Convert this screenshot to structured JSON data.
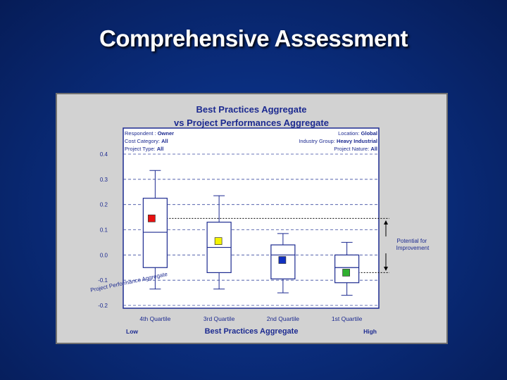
{
  "slide": {
    "title": "Comprehensive Assessment"
  },
  "chart_info": {
    "respondent_label": "Respondent :",
    "respondent_value": "Owner",
    "cost_category_label": "Cost Category:",
    "cost_category_value": "All",
    "project_type_label": "Project Type:",
    "project_type_value": "All",
    "location_label": "Location:",
    "location_value": "Global",
    "industry_group_label": "Industry Group:",
    "industry_group_value": "Heavy Industrial",
    "project_nature_label": "Project Nature:",
    "project_nature_value": "All"
  },
  "chart_data": {
    "type": "box",
    "title_line1": "Best Practices Aggregate",
    "title_line2": "vs Project Performances Aggregate",
    "xlabel": "Best Practices Aggregate",
    "ylabel": "Project Performance Aggregate",
    "x_low_label": "Low",
    "x_high_label": "High",
    "ylim": [
      -0.2,
      0.4
    ],
    "yticks": [
      "0.4",
      "0.3",
      "0.2",
      "0.1",
      "0.0",
      "-0.1",
      "-0.2"
    ],
    "ytick_values": [
      0.4,
      0.3,
      0.2,
      0.1,
      0.0,
      -0.1,
      -0.2
    ],
    "grid": true,
    "categories": [
      "4th Quartile",
      "3rd Quartile",
      "2nd Quartile",
      "1st Quartile"
    ],
    "boxes": [
      {
        "category": "4th Quartile",
        "whisker_high": 0.335,
        "q3": 0.225,
        "median": 0.09,
        "q1": -0.05,
        "whisker_low": -0.135,
        "mean": 0.145,
        "mean_color": "#e81010"
      },
      {
        "category": "3rd Quartile",
        "whisker_high": 0.235,
        "q3": 0.13,
        "median": 0.03,
        "q1": -0.07,
        "whisker_low": -0.135,
        "mean": 0.055,
        "mean_color": "#f4f400"
      },
      {
        "category": "2nd Quartile",
        "whisker_high": 0.085,
        "q3": 0.04,
        "median": 0.0,
        "q1": -0.095,
        "whisker_low": -0.15,
        "mean": -0.02,
        "mean_color": "#1030c0"
      },
      {
        "category": "1st Quartile",
        "whisker_high": 0.05,
        "q3": 0.0,
        "median": -0.05,
        "q1": -0.11,
        "whisker_low": -0.16,
        "mean": -0.07,
        "mean_color": "#30b030"
      }
    ],
    "reference_lines": [
      0.145,
      -0.07
    ],
    "annotation": "Potential for Improvement"
  }
}
